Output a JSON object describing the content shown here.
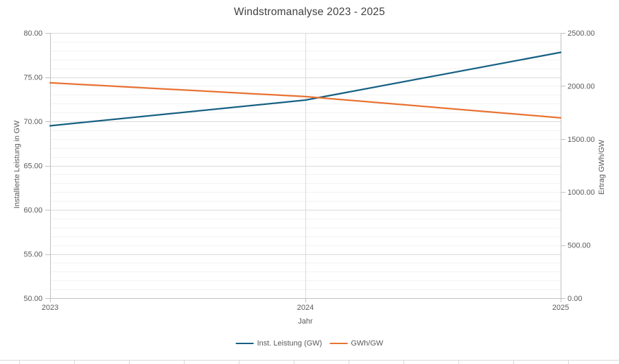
{
  "title": "Windstromanalyse 2023 - 2025",
  "colors": {
    "series1": "#156082",
    "series2": "#E97132",
    "axis_line": "#BFBFBF",
    "major_grid": "#D9D9D9",
    "minor_grid": "#F2F2F2",
    "title_text": "#404040",
    "label_text": "#595959"
  },
  "left_axis": {
    "title": "Installierte Leistung in GW",
    "min": 50,
    "max": 80,
    "major_unit": 5,
    "minor_unit": 1,
    "tick_labels": [
      "80.00",
      "75.00",
      "70.00",
      "65.00",
      "60.00",
      "55.00",
      "50.00"
    ]
  },
  "right_axis": {
    "title": "Ertrag GWh/GW",
    "min": 0,
    "max": 2500,
    "major_unit": 500,
    "tick_labels": [
      "2500.00",
      "2000.00",
      "1500.00",
      "1000.00",
      "500.00",
      "0.00"
    ]
  },
  "x_axis": {
    "title": "Jahr",
    "labels": [
      "2023",
      "2024",
      "2025"
    ]
  },
  "legend": {
    "items": [
      {
        "label": "Inst. Leistung (GW)",
        "color": "#156082"
      },
      {
        "label": "GWh/GW",
        "color": "#E97132"
      }
    ]
  },
  "chart_data": {
    "type": "line",
    "title": "Windstromanalyse 2023 - 2025",
    "x": [
      2023,
      2024,
      2025
    ],
    "series": [
      {
        "name": "Inst. Leistung (GW)",
        "axis": "left",
        "color": "#156082",
        "values": [
          69.5,
          72.4,
          77.8
        ]
      },
      {
        "name": "GWh/GW",
        "axis": "right",
        "color": "#E97132",
        "values": [
          2030,
          1900,
          1700
        ]
      }
    ],
    "xlabel": "Jahr",
    "ylabel_left": "Installierte Leistung in GW",
    "ylabel_right": "Ertrag GWh/GW",
    "ylim_left": [
      50,
      80
    ],
    "ylim_right": [
      0,
      2500
    ],
    "grid": "horizontal major+minor, vertical at categories",
    "legend_position": "bottom"
  }
}
